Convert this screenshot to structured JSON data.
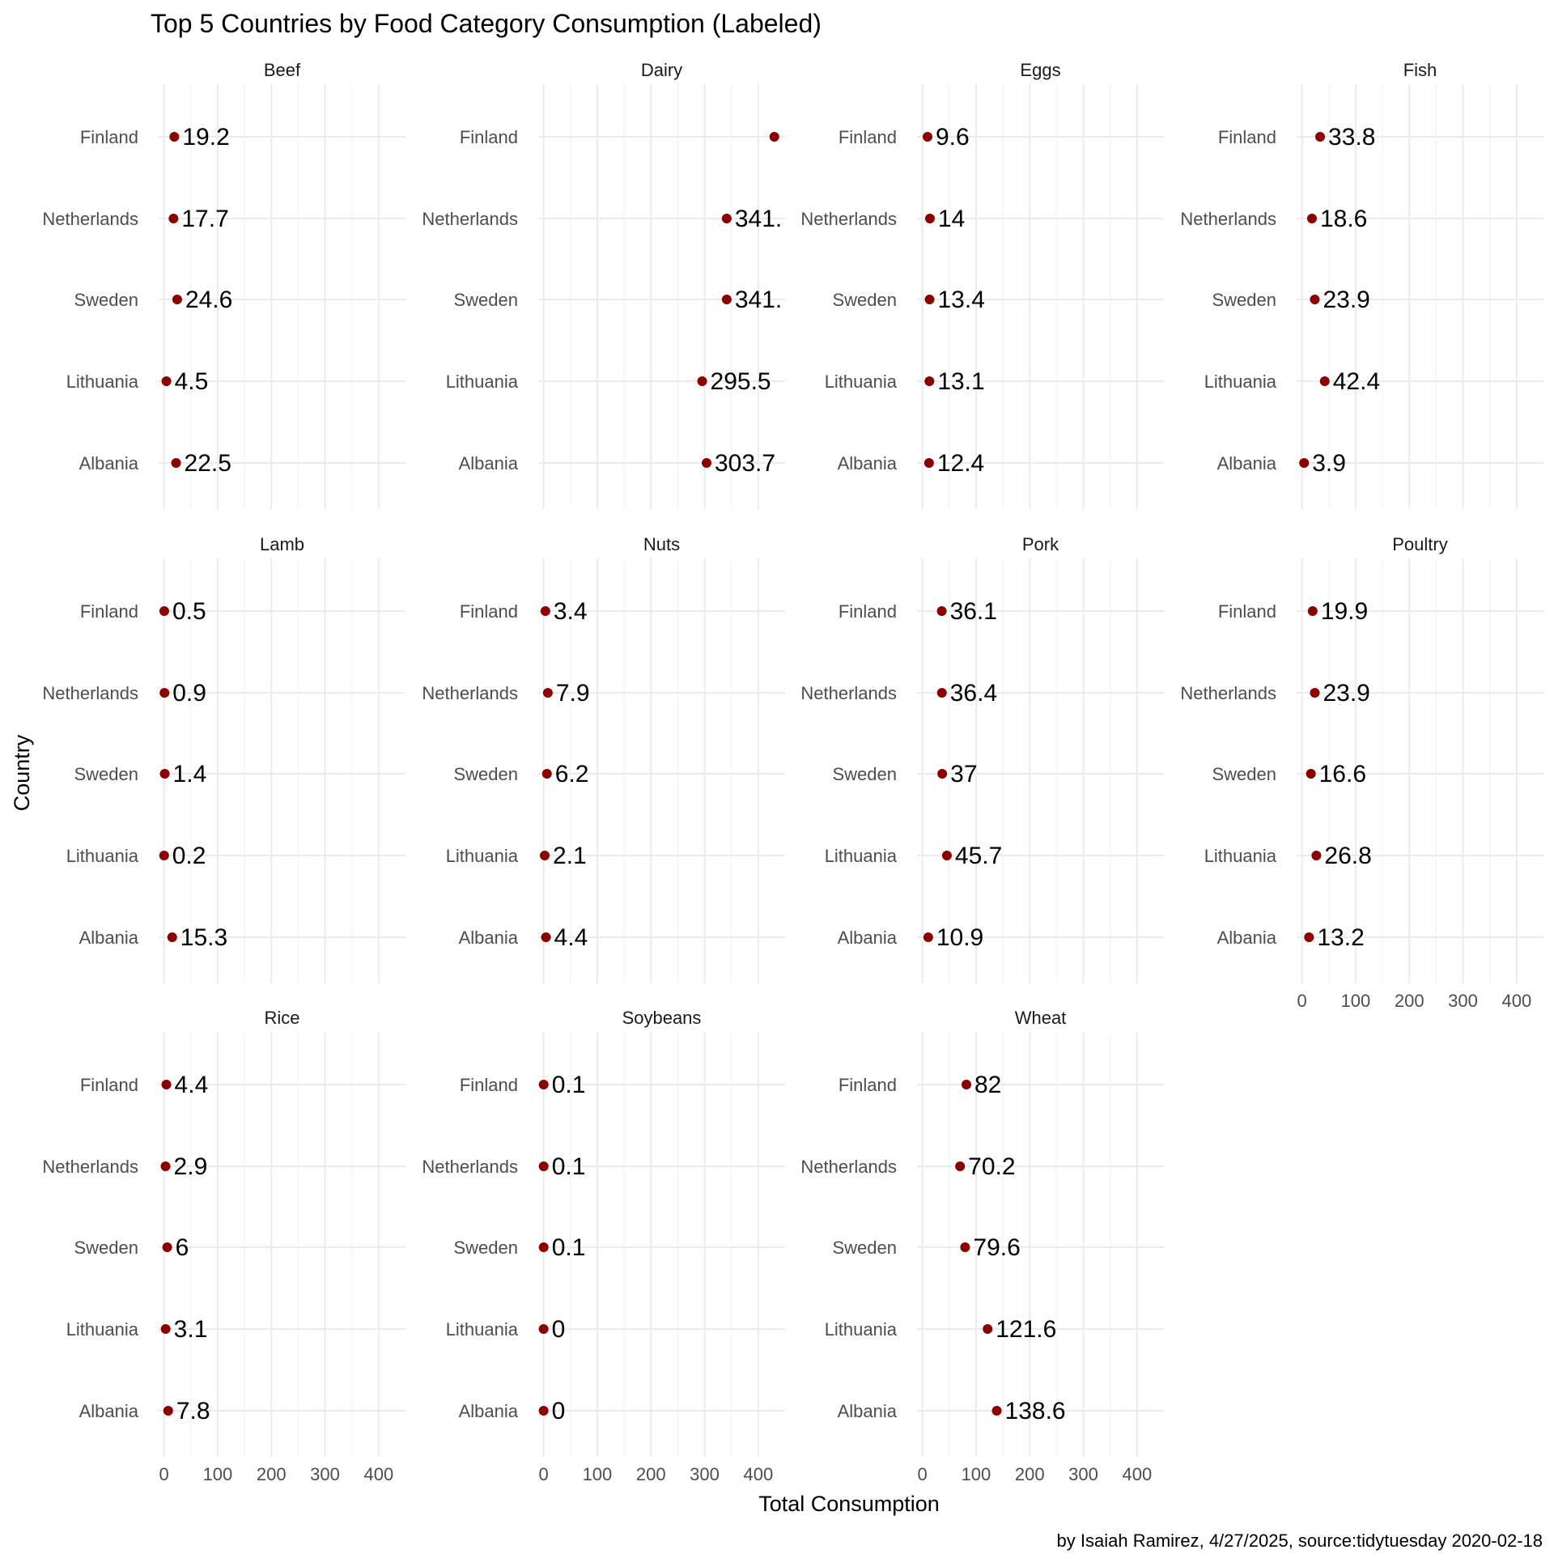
{
  "chart_data": {
    "type": "scatter",
    "title": "Top 5 Countries by Food Category Consumption (Labeled)",
    "xlabel": "Total Consumption",
    "ylabel": "Country",
    "caption": "by Isaiah Ramirez, 4/27/2025, source:tidytuesday 2020-02-18",
    "xlim": [
      -10,
      450
    ],
    "xticks": [
      "0",
      "100",
      "200",
      "300",
      "400"
    ],
    "xtick_values": [
      0,
      100,
      200,
      300,
      400
    ],
    "countries": [
      "Finland",
      "Netherlands",
      "Sweden",
      "Lithuania",
      "Albania"
    ],
    "point_color": "#8b0000",
    "grid": true,
    "facets": [
      {
        "name": "Beef",
        "values": [
          19.2,
          17.7,
          24.6,
          4.5,
          22.5
        ],
        "labels": [
          "19.2",
          "17.7",
          "24.6",
          "4.5",
          "22.5"
        ]
      },
      {
        "name": "Dairy",
        "values": [
          430,
          341.2,
          341.2,
          295.5,
          303.7
        ],
        "labels": [
          "",
          "341.",
          "341.",
          "295.5",
          "303.7"
        ]
      },
      {
        "name": "Eggs",
        "values": [
          9.6,
          14,
          13.4,
          13.1,
          12.4
        ],
        "labels": [
          "9.6",
          "14",
          "13.4",
          "13.1",
          "12.4"
        ]
      },
      {
        "name": "Fish",
        "values": [
          33.8,
          18.6,
          23.9,
          42.4,
          3.9
        ],
        "labels": [
          "33.8",
          "18.6",
          "23.9",
          "42.4",
          "3.9"
        ]
      },
      {
        "name": "Lamb",
        "values": [
          0.5,
          0.9,
          1.4,
          0.2,
          15.3
        ],
        "labels": [
          "0.5",
          "0.9",
          "1.4",
          "0.2",
          "15.3"
        ]
      },
      {
        "name": "Nuts",
        "values": [
          3.4,
          7.9,
          6.2,
          2.1,
          4.4
        ],
        "labels": [
          "3.4",
          "7.9",
          "6.2",
          "2.1",
          "4.4"
        ]
      },
      {
        "name": "Pork",
        "values": [
          36.1,
          36.4,
          37,
          45.7,
          10.9
        ],
        "labels": [
          "36.1",
          "36.4",
          "37",
          "45.7",
          "10.9"
        ]
      },
      {
        "name": "Poultry",
        "values": [
          19.9,
          23.9,
          16.6,
          26.8,
          13.2
        ],
        "labels": [
          "19.9",
          "23.9",
          "16.6",
          "26.8",
          "13.2"
        ]
      },
      {
        "name": "Rice",
        "values": [
          4.4,
          2.9,
          6,
          3.1,
          7.8
        ],
        "labels": [
          "4.4",
          "2.9",
          "6",
          "3.1",
          "7.8"
        ]
      },
      {
        "name": "Soybeans",
        "values": [
          0.1,
          0.1,
          0.1,
          0,
          0
        ],
        "labels": [
          "0.1",
          "0.1",
          "0.1",
          "0",
          "0"
        ]
      },
      {
        "name": "Wheat",
        "values": [
          82,
          70.2,
          79.6,
          121.6,
          138.6
        ],
        "labels": [
          "82",
          "70.2",
          "79.6",
          "121.6",
          "138.6"
        ]
      }
    ]
  }
}
